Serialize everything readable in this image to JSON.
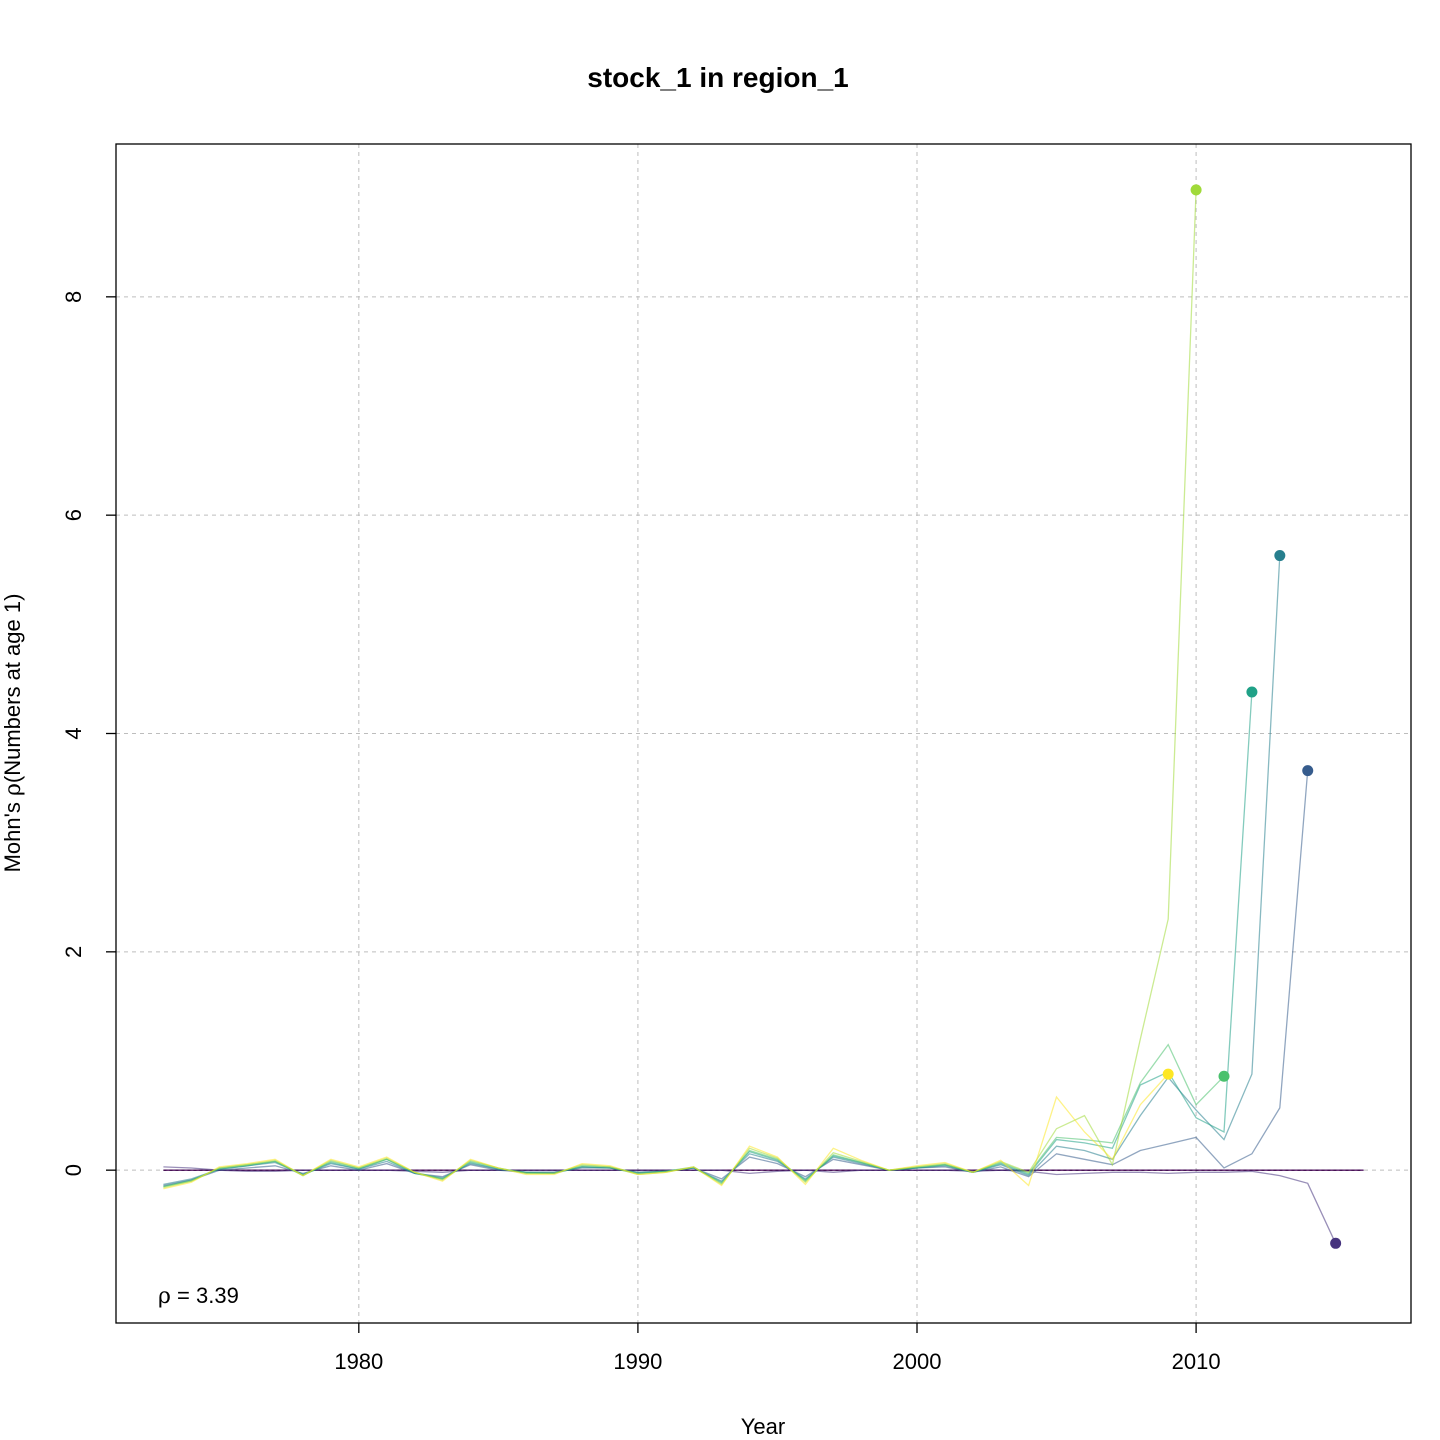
{
  "chart_data": {
    "type": "line",
    "title": "stock_1 in region_1",
    "xlabel": "Year",
    "ylabel_prefix": "Mohn's ",
    "ylabel_symbol": "ρ",
    "ylabel_suffix": "(Numbers at age 1)",
    "annotation_symbol": "ρ",
    "annotation_eq": " = ",
    "annotation_value": "3.39",
    "xlim": [
      1971.3,
      2017.7
    ],
    "ylim": [
      -1.4,
      9.4
    ],
    "xticks": [
      1980,
      1990,
      2000,
      2010
    ],
    "yticks": [
      0,
      2,
      4,
      6,
      8
    ],
    "grid": true,
    "reference_line": 0,
    "series": [
      {
        "color": "#440154",
        "x": [
          1973,
          1974,
          1975,
          1976,
          1977,
          1978,
          1979,
          1980,
          1981,
          1982,
          1983,
          1984,
          1985,
          1986,
          1987,
          1988,
          1989,
          1990,
          1991,
          1992,
          1993,
          1994,
          1995,
          1996,
          1997,
          1998,
          1999,
          2000,
          2001,
          2002,
          2003,
          2004,
          2005,
          2006,
          2007,
          2008,
          2009,
          2010,
          2011,
          2012,
          2013,
          2014,
          2015,
          2016
        ],
        "y": [
          0,
          0,
          0,
          0,
          0,
          0,
          0,
          0,
          0,
          0,
          0,
          0,
          0,
          0,
          0,
          0,
          0,
          0,
          0,
          0,
          0,
          0,
          0,
          0,
          0,
          0,
          0,
          0,
          0,
          0,
          0,
          0,
          0,
          0,
          0,
          0,
          0,
          0,
          0,
          0,
          0,
          0,
          0,
          0
        ]
      },
      {
        "color": "#46337E",
        "x": [
          1973,
          1974,
          1975,
          1976,
          1977,
          1978,
          1979,
          1980,
          1981,
          1982,
          1983,
          1984,
          1985,
          1986,
          1987,
          1988,
          1989,
          1990,
          1991,
          1992,
          1993,
          1994,
          1995,
          1996,
          1997,
          1998,
          1999,
          2000,
          2001,
          2002,
          2003,
          2004,
          2005,
          2006,
          2007,
          2008,
          2009,
          2010,
          2011,
          2012,
          2013,
          2014,
          2015
        ],
        "y": [
          0.03,
          0.02,
          0.0,
          -0.01,
          -0.01,
          0.0,
          0.0,
          0.0,
          0.0,
          -0.01,
          -0.02,
          0.0,
          0.0,
          0.0,
          0.0,
          0.0,
          0.0,
          0.0,
          0.0,
          0.0,
          0.0,
          -0.03,
          -0.01,
          0.0,
          -0.02,
          0.0,
          0.0,
          0.0,
          0.0,
          -0.01,
          0.0,
          -0.01,
          -0.04,
          -0.03,
          -0.02,
          -0.02,
          -0.03,
          -0.02,
          -0.02,
          -0.01,
          -0.05,
          -0.12,
          -0.67
        ]
      },
      {
        "color": "#365C8D",
        "x": [
          1973,
          1974,
          1975,
          1976,
          1977,
          1978,
          1979,
          1980,
          1981,
          1982,
          1983,
          1984,
          1985,
          1986,
          1987,
          1988,
          1989,
          1990,
          1991,
          1992,
          1993,
          1994,
          1995,
          1996,
          1997,
          1998,
          1999,
          2000,
          2001,
          2002,
          2003,
          2004,
          2005,
          2006,
          2007,
          2008,
          2009,
          2010,
          2011,
          2012,
          2013,
          2014
        ],
        "y": [
          -0.14,
          -0.09,
          0.0,
          0.02,
          0.04,
          -0.03,
          0.04,
          0.0,
          0.06,
          -0.03,
          -0.06,
          0.05,
          0.0,
          -0.02,
          -0.02,
          0.02,
          0.02,
          -0.02,
          -0.01,
          0.02,
          -0.08,
          0.12,
          0.06,
          -0.06,
          0.1,
          0.05,
          0.0,
          0.02,
          0.03,
          -0.02,
          0.03,
          -0.06,
          0.15,
          0.1,
          0.05,
          0.18,
          0.24,
          0.3,
          0.02,
          0.15,
          0.57,
          3.66
        ]
      },
      {
        "color": "#277F8E",
        "x": [
          1973,
          1974,
          1975,
          1976,
          1977,
          1978,
          1979,
          1980,
          1981,
          1982,
          1983,
          1984,
          1985,
          1986,
          1987,
          1988,
          1989,
          1990,
          1991,
          1992,
          1993,
          1994,
          1995,
          1996,
          1997,
          1998,
          1999,
          2000,
          2001,
          2002,
          2003,
          2004,
          2005,
          2006,
          2007,
          2008,
          2009,
          2010,
          2011,
          2012,
          2013
        ],
        "y": [
          -0.13,
          -0.08,
          0.01,
          0.04,
          0.07,
          -0.04,
          0.06,
          0.01,
          0.08,
          -0.03,
          -0.07,
          0.06,
          0.01,
          -0.02,
          -0.02,
          0.03,
          0.02,
          -0.02,
          -0.01,
          0.02,
          -0.1,
          0.15,
          0.08,
          -0.08,
          0.12,
          0.06,
          0.0,
          0.02,
          0.04,
          -0.02,
          0.05,
          -0.05,
          0.22,
          0.18,
          0.1,
          0.5,
          0.85,
          0.55,
          0.28,
          0.88,
          5.63
        ]
      },
      {
        "color": "#1FA187",
        "x": [
          1973,
          1974,
          1975,
          1976,
          1977,
          1978,
          1979,
          1980,
          1981,
          1982,
          1983,
          1984,
          1985,
          1986,
          1987,
          1988,
          1989,
          1990,
          1991,
          1992,
          1993,
          1994,
          1995,
          1996,
          1997,
          1998,
          1999,
          2000,
          2001,
          2002,
          2003,
          2004,
          2005,
          2006,
          2007,
          2008,
          2009,
          2010,
          2011,
          2012
        ],
        "y": [
          -0.15,
          -0.09,
          0.01,
          0.04,
          0.08,
          -0.04,
          0.07,
          0.01,
          0.1,
          -0.03,
          -0.08,
          0.07,
          0.01,
          -0.02,
          -0.03,
          0.03,
          0.02,
          -0.03,
          -0.01,
          0.02,
          -0.11,
          0.17,
          0.09,
          -0.09,
          0.13,
          0.07,
          0.0,
          0.02,
          0.05,
          -0.02,
          0.06,
          -0.04,
          0.28,
          0.25,
          0.2,
          0.78,
          0.9,
          0.48,
          0.35,
          4.38
        ]
      },
      {
        "color": "#4AC16D",
        "x": [
          1973,
          1974,
          1975,
          1976,
          1977,
          1978,
          1979,
          1980,
          1981,
          1982,
          1983,
          1984,
          1985,
          1986,
          1987,
          1988,
          1989,
          1990,
          1991,
          1992,
          1993,
          1994,
          1995,
          1996,
          1997,
          1998,
          1999,
          2000,
          2001,
          2002,
          2003,
          2004,
          2005,
          2006,
          2007,
          2008,
          2009,
          2010,
          2011
        ],
        "y": [
          -0.15,
          -0.1,
          0.02,
          0.05,
          0.08,
          -0.05,
          0.08,
          0.02,
          0.1,
          -0.02,
          -0.08,
          0.08,
          0.02,
          -0.03,
          -0.03,
          0.04,
          0.03,
          -0.03,
          -0.01,
          0.03,
          -0.12,
          0.18,
          0.1,
          -0.1,
          0.14,
          0.07,
          0.0,
          0.03,
          0.05,
          -0.02,
          0.07,
          -0.03,
          0.3,
          0.28,
          0.25,
          0.8,
          1.15,
          0.6,
          0.86
        ]
      },
      {
        "color": "#A0DA39",
        "x": [
          1973,
          1974,
          1975,
          1976,
          1977,
          1978,
          1979,
          1980,
          1981,
          1982,
          1983,
          1984,
          1985,
          1986,
          1987,
          1988,
          1989,
          1990,
          1991,
          1992,
          1993,
          1994,
          1995,
          1996,
          1997,
          1998,
          1999,
          2000,
          2001,
          2002,
          2003,
          2004,
          2005,
          2006,
          2007,
          2008,
          2009,
          2010
        ],
        "y": [
          -0.16,
          -0.1,
          0.02,
          0.05,
          0.09,
          -0.05,
          0.09,
          0.02,
          0.11,
          -0.02,
          -0.09,
          0.09,
          0.02,
          -0.03,
          -0.03,
          0.05,
          0.03,
          -0.04,
          -0.02,
          0.03,
          -0.13,
          0.2,
          0.11,
          -0.11,
          0.16,
          0.08,
          0.0,
          0.03,
          0.06,
          -0.02,
          0.08,
          -0.02,
          0.38,
          0.5,
          0.05,
          1.2,
          2.3,
          8.98
        ]
      },
      {
        "color": "#FDE725",
        "x": [
          1973,
          1974,
          1975,
          1976,
          1977,
          1978,
          1979,
          1980,
          1981,
          1982,
          1983,
          1984,
          1985,
          1986,
          1987,
          1988,
          1989,
          1990,
          1991,
          1992,
          1993,
          1994,
          1995,
          1996,
          1997,
          1998,
          1999,
          2000,
          2001,
          2002,
          2003,
          2004,
          2005,
          2006,
          2007,
          2008,
          2009
        ],
        "y": [
          -0.17,
          -0.11,
          0.03,
          0.06,
          0.1,
          -0.05,
          0.1,
          0.03,
          0.12,
          -0.02,
          -0.1,
          0.1,
          0.02,
          -0.04,
          -0.04,
          0.06,
          0.04,
          -0.04,
          -0.02,
          0.03,
          -0.14,
          0.22,
          0.12,
          -0.13,
          0.2,
          0.09,
          0.0,
          0.04,
          0.07,
          -0.02,
          0.09,
          -0.14,
          0.67,
          0.35,
          0.1,
          0.6,
          0.88
        ]
      }
    ]
  }
}
